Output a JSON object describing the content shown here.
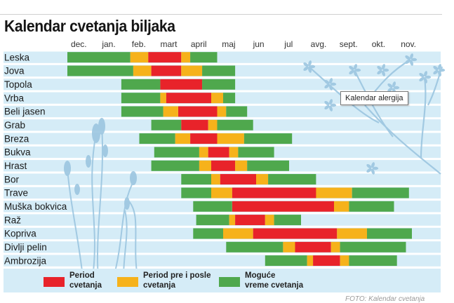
{
  "page": {
    "title": "Kalendar cvetanja biljaka",
    "tooltip": "Kalendar alergija",
    "credit": "FOTO: Kalendar cvetanja"
  },
  "colors": {
    "background_stripe": "#d5ecf7",
    "peak": "#e8232a",
    "shoulder": "#f6b21b",
    "possible": "#4fa84d",
    "illustration": "#9cc6e0"
  },
  "icons": [
    "grass-illustration",
    "tree-branch-illustration"
  ],
  "chart_data": {
    "type": "gantt",
    "title": "Kalendar cvetanja biljaka",
    "months": [
      "dec.",
      "jan.",
      "feb.",
      "mart",
      "april",
      "maj",
      "jun",
      "jul",
      "avg.",
      "sept.",
      "okt.",
      "nov."
    ],
    "month_index_range": [
      0,
      12
    ],
    "legend": [
      {
        "key": "peak",
        "label": [
          "Period",
          "cvetanja"
        ]
      },
      {
        "key": "shoulder",
        "label": [
          "Period pre i posle",
          "cvetanja"
        ]
      },
      {
        "key": "possible",
        "label": [
          "Moguće",
          "vreme cvetanja"
        ]
      }
    ],
    "legend_position": "bottom",
    "plants": [
      {
        "name": "Leska",
        "segments": [
          [
            "possible",
            0.0,
            2.1
          ],
          [
            "shoulder",
            2.1,
            2.7
          ],
          [
            "peak",
            2.7,
            3.8
          ],
          [
            "shoulder",
            3.8,
            4.1
          ],
          [
            "possible",
            4.1,
            5.0
          ]
        ]
      },
      {
        "name": "Jova",
        "segments": [
          [
            "possible",
            0.0,
            2.2
          ],
          [
            "shoulder",
            2.2,
            2.8
          ],
          [
            "peak",
            2.8,
            3.8
          ],
          [
            "shoulder",
            3.8,
            4.5
          ],
          [
            "possible",
            4.5,
            5.6
          ]
        ]
      },
      {
        "name": "Topola",
        "segments": [
          [
            "possible",
            1.8,
            3.1
          ],
          [
            "peak",
            3.1,
            4.5
          ],
          [
            "possible",
            4.5,
            5.6
          ]
        ]
      },
      {
        "name": "Vrba",
        "segments": [
          [
            "possible",
            1.8,
            3.1
          ],
          [
            "shoulder",
            3.1,
            3.3
          ],
          [
            "peak",
            3.3,
            4.8
          ],
          [
            "shoulder",
            4.8,
            5.2
          ],
          [
            "possible",
            5.2,
            5.6
          ]
        ]
      },
      {
        "name": "Beli jasen",
        "segments": [
          [
            "possible",
            1.8,
            3.2
          ],
          [
            "shoulder",
            3.2,
            3.7
          ],
          [
            "peak",
            3.7,
            5.0
          ],
          [
            "shoulder",
            5.0,
            5.3
          ],
          [
            "possible",
            5.3,
            6.0
          ]
        ]
      },
      {
        "name": "Grab",
        "segments": [
          [
            "possible",
            2.8,
            3.8
          ],
          [
            "peak",
            3.8,
            4.7
          ],
          [
            "shoulder",
            4.7,
            5.0
          ],
          [
            "possible",
            5.0,
            6.2
          ]
        ]
      },
      {
        "name": "Breza",
        "segments": [
          [
            "possible",
            2.4,
            3.6
          ],
          [
            "shoulder",
            3.6,
            4.1
          ],
          [
            "peak",
            4.1,
            5.0
          ],
          [
            "shoulder",
            5.0,
            5.9
          ],
          [
            "possible",
            5.9,
            7.5
          ]
        ]
      },
      {
        "name": "Bukva",
        "segments": [
          [
            "possible",
            2.9,
            4.4
          ],
          [
            "shoulder",
            4.4,
            4.7
          ],
          [
            "peak",
            4.7,
            5.4
          ],
          [
            "shoulder",
            5.4,
            5.7
          ],
          [
            "possible",
            5.7,
            6.9
          ]
        ]
      },
      {
        "name": "Hrast",
        "segments": [
          [
            "possible",
            2.8,
            4.4
          ],
          [
            "shoulder",
            4.4,
            4.8
          ],
          [
            "peak",
            4.8,
            5.6
          ],
          [
            "shoulder",
            5.6,
            6.0
          ],
          [
            "possible",
            6.0,
            7.4
          ]
        ]
      },
      {
        "name": "Bor",
        "segments": [
          [
            "possible",
            3.8,
            4.8
          ],
          [
            "shoulder",
            4.8,
            5.1
          ],
          [
            "peak",
            5.1,
            6.3
          ],
          [
            "shoulder",
            6.3,
            6.7
          ],
          [
            "possible",
            6.7,
            8.3
          ]
        ]
      },
      {
        "name": "Trave",
        "segments": [
          [
            "possible",
            3.8,
            4.8
          ],
          [
            "shoulder",
            4.8,
            5.5
          ],
          [
            "peak",
            5.5,
            8.3
          ],
          [
            "shoulder",
            8.3,
            9.5
          ],
          [
            "possible",
            9.5,
            11.4
          ]
        ]
      },
      {
        "name": "Muška bokvica",
        "segments": [
          [
            "possible",
            4.2,
            5.5
          ],
          [
            "peak",
            5.5,
            8.9
          ],
          [
            "shoulder",
            8.9,
            9.4
          ],
          [
            "possible",
            9.4,
            10.9
          ]
        ]
      },
      {
        "name": "Raž",
        "segments": [
          [
            "possible",
            4.3,
            5.4
          ],
          [
            "shoulder",
            5.4,
            5.6
          ],
          [
            "peak",
            5.6,
            6.6
          ],
          [
            "shoulder",
            6.6,
            6.9
          ],
          [
            "possible",
            6.9,
            7.8
          ]
        ]
      },
      {
        "name": "Kopriva",
        "segments": [
          [
            "possible",
            4.2,
            5.2
          ],
          [
            "shoulder",
            5.2,
            6.2
          ],
          [
            "peak",
            6.2,
            9.0
          ],
          [
            "shoulder",
            9.0,
            10.0
          ],
          [
            "possible",
            10.0,
            11.5
          ]
        ]
      },
      {
        "name": "Divlji pelin",
        "segments": [
          [
            "possible",
            5.3,
            7.2
          ],
          [
            "shoulder",
            7.2,
            7.6
          ],
          [
            "peak",
            7.6,
            8.8
          ],
          [
            "shoulder",
            8.8,
            9.1
          ],
          [
            "possible",
            9.1,
            11.3
          ]
        ]
      },
      {
        "name": "Ambrozija",
        "segments": [
          [
            "possible",
            6.6,
            8.0
          ],
          [
            "shoulder",
            8.0,
            8.2
          ],
          [
            "peak",
            8.2,
            9.1
          ],
          [
            "shoulder",
            9.1,
            9.4
          ],
          [
            "possible",
            9.4,
            11.0
          ]
        ]
      }
    ]
  }
}
